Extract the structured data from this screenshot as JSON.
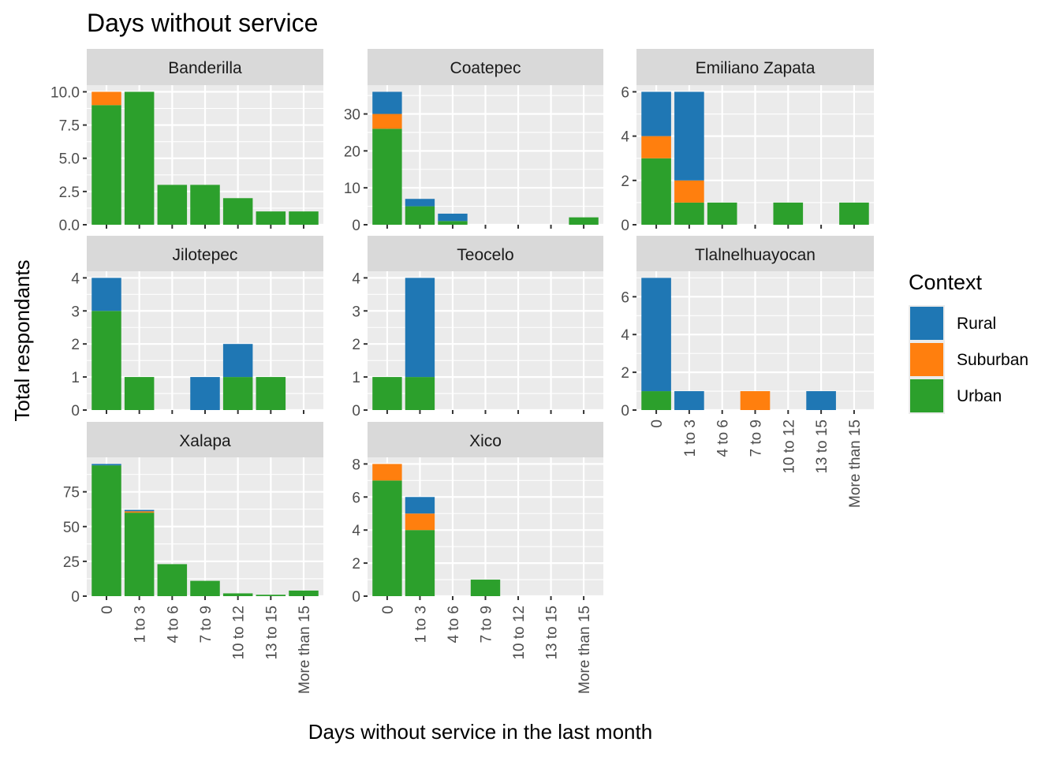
{
  "chart_data": {
    "type": "bar",
    "stacked": true,
    "title": "Days without service",
    "xlabel": "Days without service in the last month",
    "ylabel": "Total respondants",
    "categories": [
      "0",
      "1 to 3",
      "4 to 6",
      "7 to 9",
      "10 to 12",
      "13 to 15",
      "More than 15"
    ],
    "legend": {
      "title": "Context",
      "placement": "right",
      "items": [
        {
          "name": "Rural",
          "color": "#1f77b4"
        },
        {
          "name": "Suburban",
          "color": "#ff7f0e"
        },
        {
          "name": "Urban",
          "color": "#2ca02c"
        }
      ]
    },
    "grid": true,
    "facets": [
      {
        "name": "Banderilla",
        "ylim": [
          0,
          10.5
        ],
        "yticks": [
          0,
          2.5,
          5,
          7.5,
          10
        ],
        "ytick_labels": [
          "0.0",
          "2.5",
          "5.0",
          "7.5",
          "10.0"
        ],
        "series": [
          {
            "name": "Rural",
            "values": [
              0,
              0,
              0,
              0,
              0,
              0,
              0
            ]
          },
          {
            "name": "Suburban",
            "values": [
              1,
              0,
              0,
              0,
              0,
              0,
              0
            ]
          },
          {
            "name": "Urban",
            "values": [
              9,
              10,
              3,
              3,
              2,
              1,
              1
            ]
          }
        ]
      },
      {
        "name": "Coatepec",
        "ylim": [
          0,
          37.8
        ],
        "yticks": [
          0,
          10,
          20,
          30
        ],
        "ytick_labels": [
          "0",
          "10",
          "20",
          "30"
        ],
        "series": [
          {
            "name": "Rural",
            "values": [
              6,
              2,
              2,
              0,
              0,
              0,
              0
            ]
          },
          {
            "name": "Suburban",
            "values": [
              4,
              0,
              0,
              0,
              0,
              0,
              0
            ]
          },
          {
            "name": "Urban",
            "values": [
              26,
              5,
              1,
              0,
              0,
              0,
              2
            ]
          }
        ]
      },
      {
        "name": "Emiliano Zapata",
        "ylim": [
          0,
          6.3
        ],
        "yticks": [
          0,
          2,
          4,
          6
        ],
        "ytick_labels": [
          "0",
          "2",
          "4",
          "6"
        ],
        "series": [
          {
            "name": "Rural",
            "values": [
              2,
              4,
              0,
              0,
              0,
              0,
              0
            ]
          },
          {
            "name": "Suburban",
            "values": [
              1,
              1,
              0,
              0,
              0,
              0,
              0
            ]
          },
          {
            "name": "Urban",
            "values": [
              3,
              1,
              1,
              0,
              1,
              0,
              1
            ]
          }
        ]
      },
      {
        "name": "Jilotepec",
        "ylim": [
          0,
          4.2
        ],
        "yticks": [
          0,
          1,
          2,
          3,
          4
        ],
        "ytick_labels": [
          "0",
          "1",
          "2",
          "3",
          "4"
        ],
        "series": [
          {
            "name": "Rural",
            "values": [
              1,
              0,
              0,
              1,
              1,
              0,
              0
            ]
          },
          {
            "name": "Suburban",
            "values": [
              0,
              0,
              0,
              0,
              0,
              0,
              0
            ]
          },
          {
            "name": "Urban",
            "values": [
              3,
              1,
              0,
              0,
              1,
              1,
              0
            ]
          }
        ]
      },
      {
        "name": "Teocelo",
        "ylim": [
          0,
          4.2
        ],
        "yticks": [
          0,
          1,
          2,
          3,
          4
        ],
        "ytick_labels": [
          "0",
          "1",
          "2",
          "3",
          "4"
        ],
        "series": [
          {
            "name": "Rural",
            "values": [
              0,
              3,
              0,
              0,
              0,
              0,
              0
            ]
          },
          {
            "name": "Suburban",
            "values": [
              0,
              0,
              0,
              0,
              0,
              0,
              0
            ]
          },
          {
            "name": "Urban",
            "values": [
              1,
              1,
              0,
              0,
              0,
              0,
              0
            ]
          }
        ]
      },
      {
        "name": "Tlalnelhuayocan",
        "ylim": [
          0,
          7.35
        ],
        "yticks": [
          0,
          2,
          4,
          6
        ],
        "ytick_labels": [
          "0",
          "2",
          "4",
          "6"
        ],
        "series": [
          {
            "name": "Rural",
            "values": [
              6,
              1,
              0,
              0,
              0,
              1,
              0
            ]
          },
          {
            "name": "Suburban",
            "values": [
              0,
              0,
              0,
              1,
              0,
              0,
              0
            ]
          },
          {
            "name": "Urban",
            "values": [
              1,
              0,
              0,
              0,
              0,
              0,
              0
            ]
          }
        ]
      },
      {
        "name": "Xalapa",
        "ylim": [
          0,
          99.75
        ],
        "yticks": [
          0,
          25,
          50,
          75
        ],
        "ytick_labels": [
          "0",
          "25",
          "50",
          "75"
        ],
        "series": [
          {
            "name": "Rural",
            "values": [
              1,
              1,
              0,
              0,
              0,
              0,
              0
            ]
          },
          {
            "name": "Suburban",
            "values": [
              0,
              1,
              0,
              0,
              0,
              0,
              0
            ]
          },
          {
            "name": "Urban",
            "values": [
              94,
              60,
              23,
              11,
              2,
              1,
              4
            ]
          }
        ]
      },
      {
        "name": "Xico",
        "ylim": [
          0,
          8.4
        ],
        "yticks": [
          0,
          2,
          4,
          6,
          8
        ],
        "ytick_labels": [
          "0",
          "2",
          "4",
          "6",
          "8"
        ],
        "series": [
          {
            "name": "Rural",
            "values": [
              0,
              1,
              0,
              0,
              0,
              0,
              0
            ]
          },
          {
            "name": "Suburban",
            "values": [
              1,
              1,
              0,
              0,
              0,
              0,
              0
            ]
          },
          {
            "name": "Urban",
            "values": [
              7,
              4,
              0,
              1,
              0,
              0,
              0
            ]
          }
        ]
      }
    ]
  }
}
